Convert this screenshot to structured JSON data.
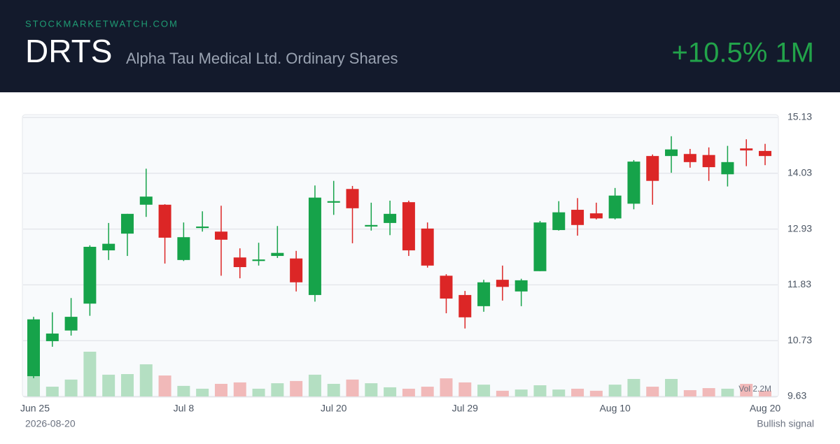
{
  "header": {
    "site": "STOCKMARKETWATCH.COM",
    "ticker": "DRTS",
    "name": "Alpha Tau Medical Ltd. Ordinary Shares",
    "change": "+10.5% 1M"
  },
  "chart_data": {
    "type": "candlestick",
    "categories": [
      "Jun 25",
      null,
      null,
      null,
      null,
      null,
      null,
      null,
      "Jul 8",
      null,
      null,
      null,
      null,
      null,
      null,
      null,
      "Jul 20",
      null,
      null,
      null,
      null,
      null,
      null,
      "Jul 29",
      null,
      null,
      null,
      null,
      null,
      null,
      null,
      "Aug 10",
      null,
      null,
      null,
      null,
      null,
      null,
      null,
      "Aug 20"
    ],
    "open": [
      10.03,
      10.72,
      10.93,
      11.46,
      12.51,
      12.84,
      13.41,
      13.41,
      12.32,
      12.95,
      12.88,
      12.37,
      12.3,
      12.4,
      12.35,
      11.63,
      13.45,
      13.72,
      12.98,
      13.05,
      13.46,
      12.94,
      12.01,
      11.63,
      11.41,
      11.93,
      11.7,
      12.1,
      12.91,
      13.31,
      13.24,
      13.14,
      13.43,
      14.37,
      14.37,
      14.41,
      14.39,
      14.01,
      14.52,
      14.47
    ],
    "high": [
      11.2,
      11.29,
      11.57,
      12.61,
      13.05,
      13.23,
      14.12,
      13.42,
      13.06,
      13.28,
      13.39,
      12.55,
      12.66,
      12.99,
      12.5,
      13.79,
      13.88,
      13.78,
      13.45,
      13.49,
      13.49,
      13.06,
      12.04,
      11.71,
      11.93,
      12.21,
      11.95,
      13.09,
      13.48,
      13.54,
      13.45,
      13.74,
      14.29,
      14.4,
      14.76,
      14.51,
      14.54,
      14.57,
      14.7,
      14.61
    ],
    "low": [
      9.99,
      10.61,
      10.83,
      11.22,
      12.32,
      12.4,
      13.17,
      12.25,
      12.3,
      12.88,
      12.01,
      11.96,
      12.21,
      12.36,
      11.7,
      11.5,
      13.21,
      12.65,
      12.9,
      12.81,
      12.4,
      12.17,
      11.27,
      10.97,
      11.3,
      11.52,
      11.41,
      12.1,
      12.9,
      12.8,
      13.12,
      13.12,
      13.32,
      13.41,
      14.04,
      14.14,
      13.88,
      13.77,
      14.17,
      14.19
    ],
    "close": [
      11.15,
      10.87,
      11.2,
      12.58,
      12.64,
      13.23,
      13.57,
      12.76,
      12.77,
      12.98,
      12.72,
      12.18,
      12.33,
      12.46,
      11.88,
      13.55,
      13.48,
      13.34,
      13.01,
      13.23,
      12.51,
      12.21,
      11.56,
      11.19,
      11.88,
      11.79,
      11.92,
      13.06,
      13.26,
      13.01,
      13.14,
      13.59,
      14.26,
      13.88,
      14.5,
      14.25,
      14.15,
      14.25,
      14.48,
      14.37
    ],
    "volume": [
      1.0,
      0.48,
      0.83,
      2.2,
      1.07,
      1.1,
      1.58,
      1.03,
      0.52,
      0.38,
      0.62,
      0.69,
      0.38,
      0.65,
      0.76,
      1.07,
      0.62,
      0.83,
      0.65,
      0.45,
      0.38,
      0.48,
      0.89,
      0.69,
      0.58,
      0.28,
      0.34,
      0.55,
      0.34,
      0.38,
      0.28,
      0.58,
      0.86,
      0.48,
      0.86,
      0.31,
      0.41,
      0.38,
      0.62,
      0.28
    ],
    "volume_label": "Vol 2.2M",
    "ylim": [
      9.63,
      15.13
    ],
    "yticks": [
      15.13,
      14.03,
      12.93,
      11.83,
      10.73,
      9.63
    ],
    "grid": true,
    "up_color": "#16a34a",
    "down_color": "#dc2626",
    "up_volume_color": "#b4dfc2",
    "down_volume_color": "#f1b9b9"
  },
  "footer": {
    "date": "2026-08-20",
    "signal": "Bullish signal"
  }
}
